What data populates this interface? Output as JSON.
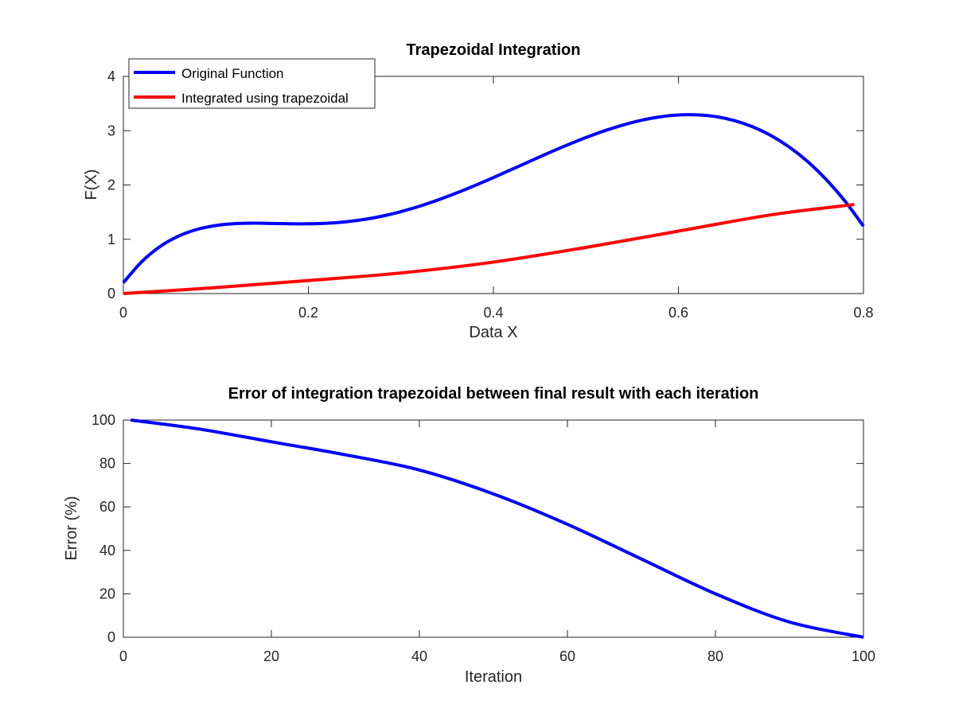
{
  "chart_data": [
    {
      "type": "line",
      "title": "Trapezoidal Integration",
      "xlabel": "Data X",
      "ylabel": "F(X)",
      "xlim": [
        0,
        0.8
      ],
      "ylim": [
        0,
        4
      ],
      "xticks": [
        "0",
        "0.2",
        "0.4",
        "0.6",
        "0.8"
      ],
      "yticks": [
        "0",
        "1",
        "2",
        "3",
        "4"
      ],
      "legend_position": "top-left",
      "series": [
        {
          "name": "Original Function",
          "color": "#0000ff",
          "x": [
            0,
            0.02,
            0.04,
            0.06,
            0.08,
            0.1,
            0.12,
            0.14,
            0.16,
            0.18,
            0.2,
            0.22,
            0.24,
            0.26,
            0.28,
            0.3,
            0.32,
            0.34,
            0.36,
            0.38,
            0.4,
            0.42,
            0.44,
            0.46,
            0.48,
            0.5,
            0.52,
            0.54,
            0.56,
            0.58,
            0.6,
            0.62,
            0.64,
            0.66,
            0.68,
            0.7,
            0.72,
            0.74,
            0.76,
            0.78,
            0.8
          ],
          "values": [
            0.2,
            0.589,
            0.87,
            1.061,
            1.183,
            1.253,
            1.287,
            1.296,
            1.292,
            1.286,
            1.285,
            1.295,
            1.321,
            1.364,
            1.427,
            1.509,
            1.608,
            1.723,
            1.851,
            1.99,
            2.137,
            2.288,
            2.441,
            2.592,
            2.737,
            2.873,
            2.997,
            3.104,
            3.191,
            3.254,
            3.289,
            3.292,
            3.26,
            3.188,
            3.073,
            2.911,
            2.696,
            2.426,
            2.096,
            1.703,
            1.241
          ]
        },
        {
          "name": "Integrated using trapezoidal",
          "color": "#ff0000",
          "x": [
            0,
            0.1,
            0.2,
            0.3,
            0.4,
            0.5,
            0.6,
            0.7,
            0.79
          ],
          "values": [
            0,
            0.11,
            0.24,
            0.38,
            0.58,
            0.85,
            1.15,
            1.45,
            1.64
          ]
        }
      ]
    },
    {
      "type": "line",
      "title": "Error of integration trapezoidal between final result with each iteration",
      "xlabel": "Iteration",
      "ylabel": "Error (%)",
      "xlim": [
        0,
        100
      ],
      "ylim": [
        0,
        100
      ],
      "xticks": [
        "0",
        "20",
        "40",
        "60",
        "80",
        "100"
      ],
      "yticks": [
        "0",
        "20",
        "40",
        "60",
        "80",
        "100"
      ],
      "series": [
        {
          "color": "#0000ff",
          "x": [
            1,
            10,
            20,
            30,
            40,
            50,
            60,
            70,
            80,
            90,
            100
          ],
          "values": [
            100,
            96,
            90,
            84,
            77,
            66,
            52,
            36,
            20,
            7,
            0
          ]
        }
      ]
    }
  ]
}
